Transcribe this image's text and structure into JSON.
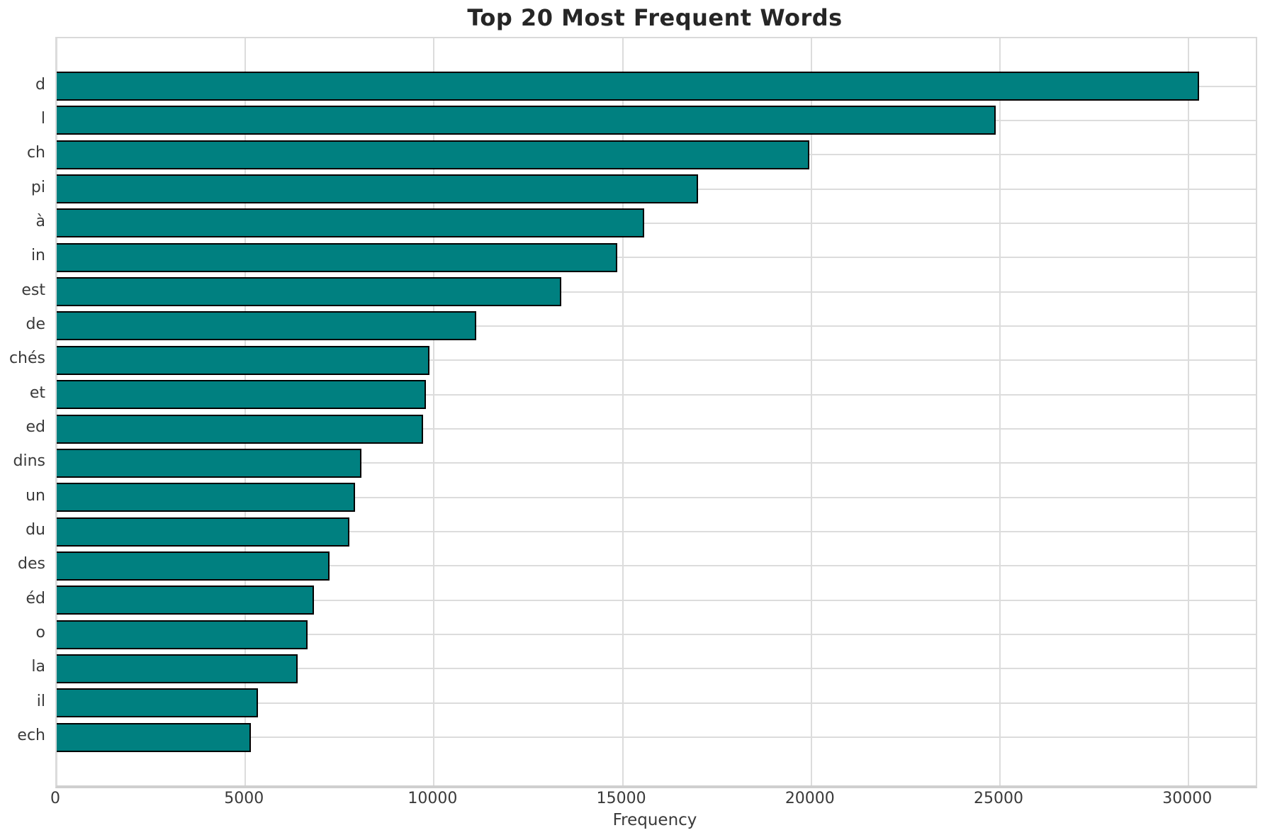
{
  "chart_data": {
    "type": "bar",
    "orientation": "horizontal",
    "title": "Top 20 Most Frequent Words",
    "xlabel": "Frequency",
    "ylabel": "",
    "categories": [
      "d",
      "l",
      "ch",
      "pi",
      "à",
      "in",
      "est",
      "de",
      "chés",
      "et",
      "ed",
      "dins",
      "un",
      "du",
      "des",
      "éd",
      "o",
      "la",
      "il",
      "ech"
    ],
    "values": [
      30280,
      24890,
      19940,
      17000,
      15580,
      14860,
      13380,
      11110,
      9880,
      9790,
      9715,
      8070,
      7900,
      7760,
      7230,
      6820,
      6640,
      6380,
      5330,
      5150
    ],
    "xlim": [
      0,
      31780
    ],
    "xticks": [
      0,
      5000,
      10000,
      15000,
      20000,
      25000,
      30000
    ],
    "xtick_labels": [
      "0",
      "5000",
      "10000",
      "15000",
      "20000",
      "25000",
      "30000"
    ],
    "grid": true,
    "legend": "none",
    "bar_color": "#008080",
    "bar_edge_color": "#000000",
    "grid_color": "#dcdcdc",
    "background_color": "#ffffff",
    "tick_text_color": "#3a3a3a",
    "title_color": "#262626"
  }
}
